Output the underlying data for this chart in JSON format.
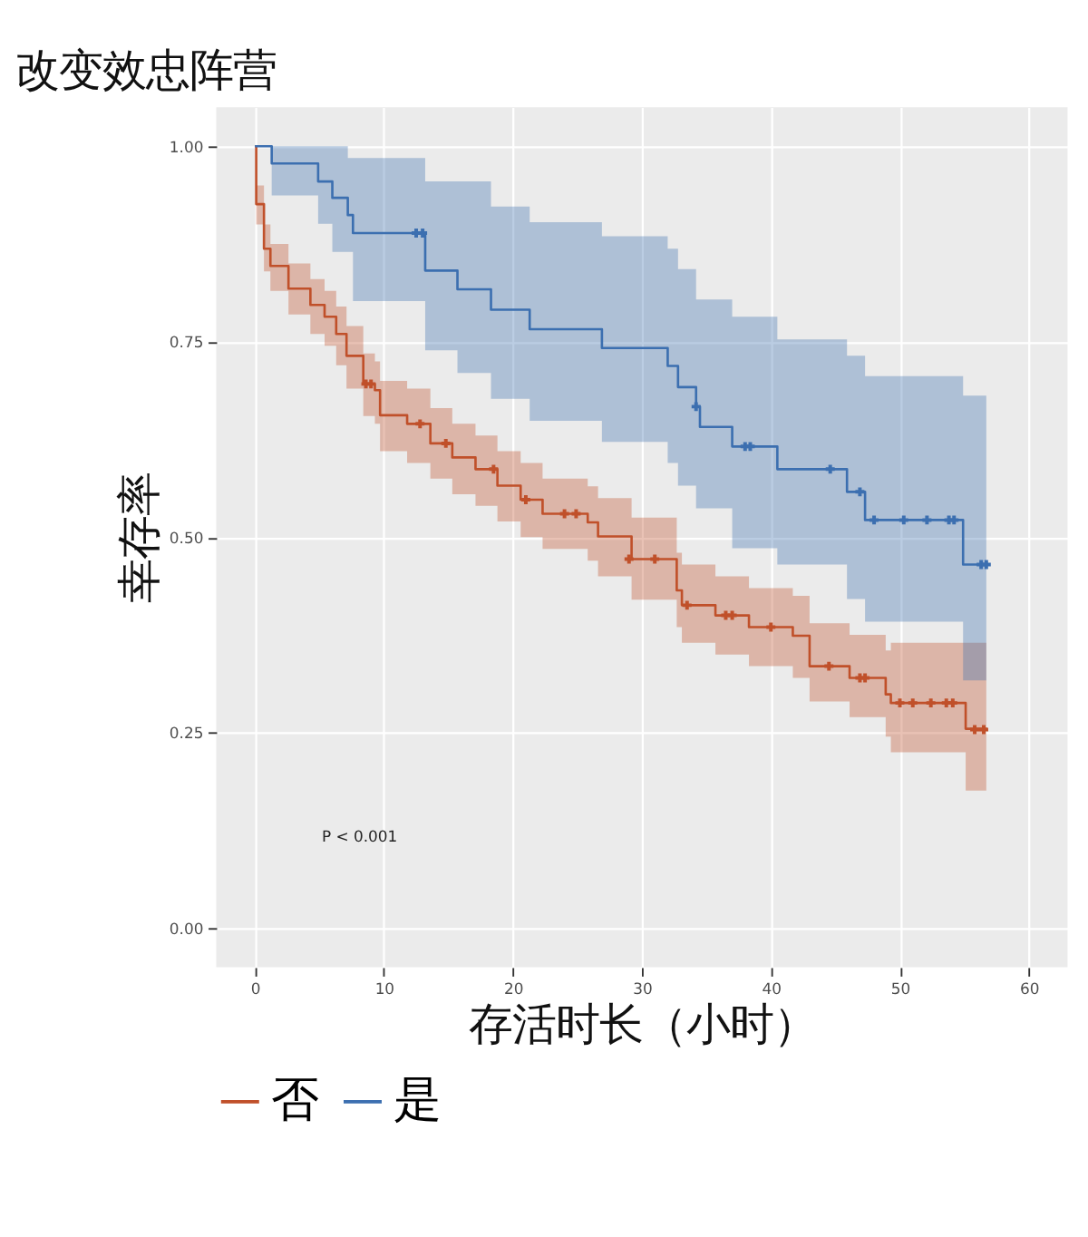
{
  "chart_data": {
    "type": "step",
    "title": "改变效忠阵营",
    "xlabel": "存活时长（小时）",
    "ylabel": "幸存率",
    "annotations": [
      "P < 0.001"
    ],
    "xlim": [
      -3,
      63
    ],
    "ylim": [
      -0.05,
      1.05
    ],
    "xticks": [
      0,
      10,
      20,
      30,
      40,
      50,
      60
    ],
    "yticks": [
      {
        "value": 0,
        "label": "0.00"
      },
      {
        "value": 0.25,
        "label": "0.25"
      },
      {
        "value": 0.5,
        "label": "0.50"
      },
      {
        "value": 0.75,
        "label": "0.75"
      },
      {
        "value": 1,
        "label": "1.00"
      }
    ],
    "grid": true,
    "legend": "bottom",
    "series": [
      {
        "name": "否",
        "color": "#c0502a",
        "x": [
          0,
          0.1,
          0.7,
          1.2,
          2.6,
          4.3,
          5.4,
          6.3,
          7.1,
          8.4,
          9.3,
          9.7,
          11.8,
          13.6,
          15.3,
          17.1,
          18.8,
          20.6,
          22.3,
          25.8,
          26.6,
          29.2,
          32.7,
          33.1,
          35.7,
          38.3,
          41.7,
          43.0,
          46.1,
          48.9,
          49.3,
          54.9,
          55.1,
          56.7
        ],
        "values": [
          1.0,
          0.926,
          0.869,
          0.847,
          0.818,
          0.797,
          0.782,
          0.76,
          0.732,
          0.696,
          0.688,
          0.656,
          0.645,
          0.62,
          0.602,
          0.587,
          0.566,
          0.548,
          0.53,
          0.519,
          0.501,
          0.472,
          0.432,
          0.413,
          0.4,
          0.385,
          0.374,
          0.335,
          0.32,
          0.299,
          0.288,
          0.288,
          0.255,
          0.254
        ],
        "lower": [
          1.0,
          0.9,
          0.84,
          0.815,
          0.785,
          0.76,
          0.745,
          0.72,
          0.69,
          0.655,
          0.645,
          0.61,
          0.595,
          0.575,
          0.555,
          0.54,
          0.52,
          0.5,
          0.485,
          0.47,
          0.45,
          0.42,
          0.385,
          0.365,
          0.35,
          0.335,
          0.32,
          0.29,
          0.27,
          0.245,
          0.225,
          0.225,
          0.176,
          0.176
        ],
        "upper": [
          1.0,
          0.95,
          0.9,
          0.875,
          0.85,
          0.83,
          0.815,
          0.795,
          0.77,
          0.735,
          0.725,
          0.7,
          0.69,
          0.665,
          0.645,
          0.63,
          0.61,
          0.595,
          0.575,
          0.565,
          0.55,
          0.525,
          0.48,
          0.465,
          0.45,
          0.435,
          0.425,
          0.39,
          0.375,
          0.355,
          0.365,
          0.365,
          0.365,
          0.365
        ]
      },
      {
        "name": "是",
        "color": "#3c6fb0",
        "x": [
          0,
          1.3,
          4.9,
          6.0,
          7.2,
          7.6,
          13.2,
          15.7,
          18.3,
          21.3,
          26.9,
          32.0,
          32.8,
          34.2,
          34.5,
          37.0,
          40.5,
          45.9,
          47.3,
          54.9,
          56.7
        ],
        "values": [
          1.0,
          0.978,
          0.955,
          0.934,
          0.912,
          0.889,
          0.841,
          0.817,
          0.791,
          0.766,
          0.742,
          0.719,
          0.692,
          0.667,
          0.641,
          0.616,
          0.587,
          0.558,
          0.522,
          0.465,
          0.465
        ],
        "lower": [
          1.0,
          0.937,
          0.901,
          0.865,
          0.865,
          0.802,
          0.739,
          0.71,
          0.677,
          0.649,
          0.622,
          0.595,
          0.566,
          0.537,
          0.537,
          0.486,
          0.465,
          0.421,
          0.392,
          0.317,
          0.317
        ],
        "upper": [
          1.0,
          1.0,
          1.0,
          1.0,
          0.985,
          0.985,
          0.955,
          0.955,
          0.923,
          0.903,
          0.885,
          0.869,
          0.843,
          0.804,
          0.804,
          0.782,
          0.753,
          0.732,
          0.706,
          0.681,
          0.681
        ]
      },
      {
        "type": "scatter",
        "marker": "cross",
        "color": "#c0502a",
        "x": [
          8.6,
          9.0,
          12.8,
          14.8,
          18.5,
          21.0,
          24.0,
          24.9,
          29.0,
          31.0,
          33.5,
          36.5,
          37.0,
          40.0,
          44.5,
          46.9,
          47.3,
          50.0,
          51.0,
          52.4,
          53.6,
          54.1,
          55.8,
          56.5
        ],
        "values": [
          0.696,
          0.696,
          0.645,
          0.62,
          0.587,
          0.548,
          0.53,
          0.53,
          0.472,
          0.472,
          0.413,
          0.4,
          0.4,
          0.385,
          0.335,
          0.32,
          0.32,
          0.288,
          0.288,
          0.288,
          0.288,
          0.288,
          0.254,
          0.254
        ]
      },
      {
        "type": "scatter",
        "marker": "cross",
        "color": "#3c6fb0",
        "x": [
          12.5,
          13.0,
          34.2,
          38.0,
          38.4,
          44.6,
          46.9,
          48.0,
          50.3,
          52.1,
          53.8,
          54.2,
          56.3,
          56.7
        ],
        "values": [
          0.889,
          0.889,
          0.667,
          0.616,
          0.616,
          0.587,
          0.558,
          0.522,
          0.522,
          0.522,
          0.522,
          0.522,
          0.465,
          0.465
        ]
      }
    ]
  }
}
